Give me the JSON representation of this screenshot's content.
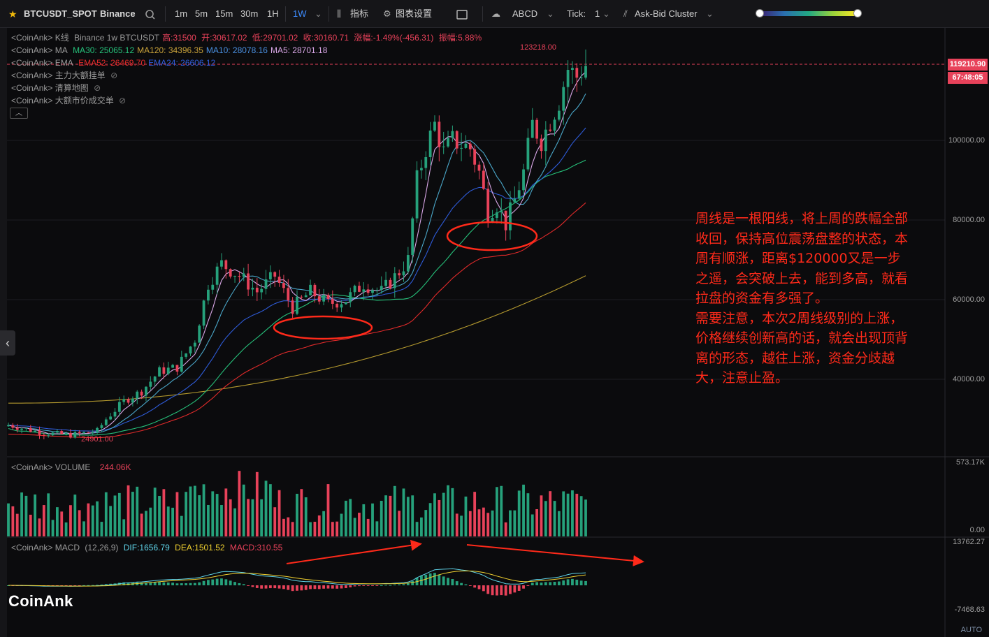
{
  "symbol": "BTCUSDT_SPOT",
  "exchange": "Binance",
  "timeframes": [
    "1m",
    "5m",
    "15m",
    "30m",
    "1H",
    "1W"
  ],
  "active_timeframe": "1W",
  "toolbar": {
    "indicators": "指标",
    "chart_settings": "图表设置",
    "abcd": "ABCD",
    "tick_label": "Tick:",
    "tick_value": "1",
    "ask_bid": "Ask-Bid Cluster"
  },
  "legend": {
    "kline_prefix": "<CoinAnk> K线",
    "kline_info": "Binance 1w BTCUSDT",
    "high": "高:31500",
    "open": "开:30617.02",
    "low": "低:29701.02",
    "close": "收:30160.71",
    "change": "涨幅:-1.49%(-456.31)",
    "amplitude": "振幅:5.88%",
    "ma_prefix": "<CoinAnk> MA",
    "ma30": "MA30: 25065.12",
    "ma120": "MA120: 34396.35",
    "ma10": "MA10: 28078.16",
    "ma5": "MA5: 28701.18",
    "ema_prefix": "<CoinAnk> EMA",
    "ema52": "EMA52: 26469.70",
    "ema24": "EMA24: 26606.12",
    "big_orders": "<CoinAnk> 主力大额挂单",
    "liq_map": "<CoinAnk> 清算地图",
    "big_trades": "<CoinAnk> 大额市价成交单"
  },
  "price_axis": [
    "100000.00",
    "80000.00",
    "60000.00",
    "40000.00"
  ],
  "price_tag": "119210.90",
  "countdown_tag": "67:48:05",
  "high_marker": "123218.00",
  "low_marker": "24901.00",
  "volume": {
    "label": "<CoinAnk> VOLUME",
    "value": "244.06K",
    "axis_top": "573.17K",
    "axis_bottom": "0.00"
  },
  "macd": {
    "label": "<CoinAnk> MACD",
    "params": "(12,26,9)",
    "dif": "DIF:1656.79",
    "dea": "DEA:1501.52",
    "macd": "MACD:310.55",
    "axis_top": "13762.27",
    "axis_bottom": "-7468.63"
  },
  "annotation": [
    "周线是一根阳线，将上周的跌幅全部收回，保持高位震荡盘整的状态，本周有顺涨，距离$120000又是一步之遥，会突破上去，能到多高，就看拉盘的资金有多强了。",
    "需要注意，本次2周线级别的上涨，价格继续创新高的话，就会出现顶背离的形态，越往上涨，资金分歧越大，注意止盈。"
  ],
  "logo": "CoinAnk",
  "auto_label": "AUTO",
  "colors": {
    "up": "#26a17b",
    "down": "#e8425a",
    "accent": "#3d8cff",
    "annotation": "#ff2a1a"
  }
}
